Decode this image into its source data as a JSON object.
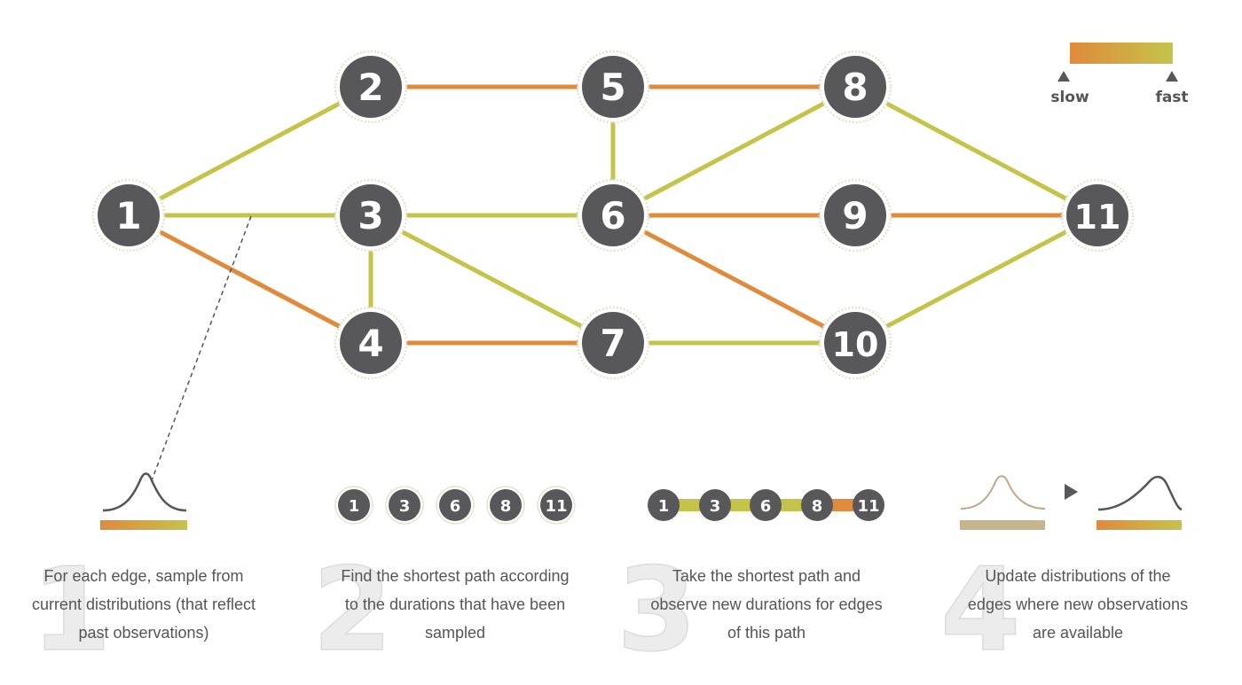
{
  "colors": {
    "slow": "#e08a3c",
    "fast": "#c4c44a",
    "node_fill": "#58585b",
    "node_ring": "#e6e2d2",
    "text": "#555555",
    "dist_old": "#c2a986"
  },
  "legend": {
    "slow_label": "slow",
    "fast_label": "fast"
  },
  "graph": {
    "nodes": [
      {
        "id": "1",
        "label": "1"
      },
      {
        "id": "2",
        "label": "2"
      },
      {
        "id": "3",
        "label": "3"
      },
      {
        "id": "4",
        "label": "4"
      },
      {
        "id": "5",
        "label": "5"
      },
      {
        "id": "6",
        "label": "6"
      },
      {
        "id": "7",
        "label": "7"
      },
      {
        "id": "8",
        "label": "8"
      },
      {
        "id": "9",
        "label": "9"
      },
      {
        "id": "10",
        "label": "10"
      },
      {
        "id": "11",
        "label": "11"
      }
    ],
    "edges": [
      {
        "from": "1",
        "to": "2",
        "speed": "fast"
      },
      {
        "from": "1",
        "to": "3",
        "speed": "fast"
      },
      {
        "from": "1",
        "to": "4",
        "speed": "slow"
      },
      {
        "from": "2",
        "to": "5",
        "speed": "slow"
      },
      {
        "from": "3",
        "to": "4",
        "speed": "fast"
      },
      {
        "from": "3",
        "to": "6",
        "speed": "fast"
      },
      {
        "from": "3",
        "to": "7",
        "speed": "fast"
      },
      {
        "from": "4",
        "to": "7",
        "speed": "slow"
      },
      {
        "from": "5",
        "to": "6",
        "speed": "fast"
      },
      {
        "from": "5",
        "to": "8",
        "speed": "slow"
      },
      {
        "from": "6",
        "to": "8",
        "speed": "fast"
      },
      {
        "from": "6",
        "to": "9",
        "speed": "slow"
      },
      {
        "from": "6",
        "to": "10",
        "speed": "slow"
      },
      {
        "from": "7",
        "to": "10",
        "speed": "fast"
      },
      {
        "from": "8",
        "to": "11",
        "speed": "fast"
      },
      {
        "from": "9",
        "to": "11",
        "speed": "slow"
      },
      {
        "from": "10",
        "to": "11",
        "speed": "fast"
      }
    ]
  },
  "steps": [
    {
      "number": "1",
      "lines": [
        "For each edge, sample from",
        "current distributions (that reflect",
        "past observations)"
      ]
    },
    {
      "number": "2",
      "lines": [
        "Find the shortest path according",
        "to the durations that have been",
        "sampled"
      ],
      "path_nodes": [
        "1",
        "3",
        "6",
        "8",
        "11"
      ]
    },
    {
      "number": "3",
      "lines": [
        "Take the shortest path and",
        "observe new durations for edges",
        "of this path"
      ],
      "path_nodes": [
        "1",
        "3",
        "6",
        "8",
        "11"
      ],
      "path_speeds": [
        "fast",
        "fast",
        "fast",
        "slow"
      ]
    },
    {
      "number": "4",
      "lines": [
        "Update distributions of the",
        "edges where new observations",
        "are available"
      ]
    }
  ]
}
